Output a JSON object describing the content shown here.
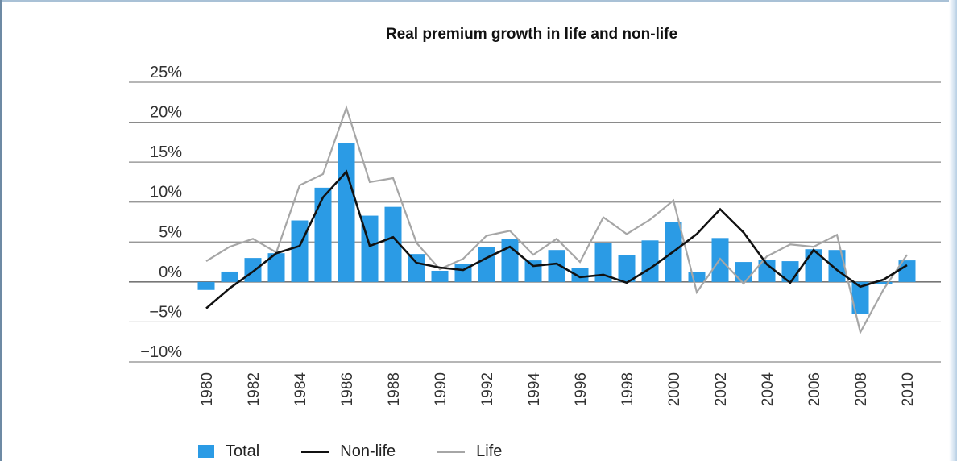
{
  "chart_data": {
    "type": "bar",
    "title": "Real premium growth in life and non-life",
    "xlabel": "",
    "ylabel": "",
    "ylim": [
      -10,
      25
    ],
    "yticks": [
      25,
      20,
      15,
      10,
      5,
      0,
      -5,
      -10
    ],
    "ytick_labels": [
      "25%",
      "20%",
      "15%",
      "10%",
      "5%",
      "0%",
      "−5%",
      "−10%"
    ],
    "x": [
      1980,
      1981,
      1982,
      1983,
      1984,
      1985,
      1986,
      1987,
      1988,
      1989,
      1990,
      1991,
      1992,
      1993,
      1994,
      1995,
      1996,
      1997,
      1998,
      1999,
      2000,
      2001,
      2002,
      2003,
      2004,
      2005,
      2006,
      2007,
      2008,
      2009,
      2010
    ],
    "xtick_labels": [
      "1980",
      "1982",
      "1984",
      "1986",
      "1988",
      "1990",
      "1992",
      "1994",
      "1996",
      "1998",
      "2000",
      "2002",
      "2004",
      "2006",
      "2008",
      "2010"
    ],
    "grid": "horizontal",
    "legend_position": "bottom",
    "series": [
      {
        "name": "Total",
        "kind": "bar",
        "color": "#2b9be5",
        "values": [
          -1.0,
          1.3,
          3.0,
          3.6,
          7.7,
          11.8,
          17.4,
          8.3,
          9.4,
          3.5,
          1.4,
          2.3,
          4.4,
          5.4,
          2.7,
          4.0,
          1.7,
          4.9,
          3.4,
          5.2,
          7.5,
          1.2,
          5.5,
          2.5,
          2.8,
          2.6,
          4.1,
          4.0,
          -4.0,
          -0.3,
          2.7
        ]
      },
      {
        "name": "Non-life",
        "kind": "line",
        "color": "#111111",
        "values": [
          -3.3,
          -0.8,
          1.3,
          3.6,
          4.5,
          10.6,
          13.8,
          4.5,
          5.6,
          2.4,
          1.8,
          1.5,
          3.0,
          4.4,
          2.0,
          2.3,
          0.6,
          0.9,
          -0.1,
          1.7,
          3.8,
          6.0,
          9.1,
          6.2,
          2.2,
          -0.1,
          4.0,
          1.5,
          -0.6,
          0.3,
          2.1
        ]
      },
      {
        "name": "Life",
        "kind": "line",
        "color": "#a6a6a6",
        "values": [
          2.6,
          4.4,
          5.4,
          3.7,
          12.1,
          13.5,
          21.8,
          12.5,
          13.0,
          4.9,
          1.6,
          2.9,
          5.8,
          6.4,
          3.4,
          5.4,
          2.5,
          8.1,
          6.0,
          7.8,
          10.2,
          -1.3,
          2.9,
          -0.2,
          3.2,
          4.7,
          4.4,
          5.9,
          -6.3,
          -0.9,
          3.4
        ]
      }
    ]
  }
}
